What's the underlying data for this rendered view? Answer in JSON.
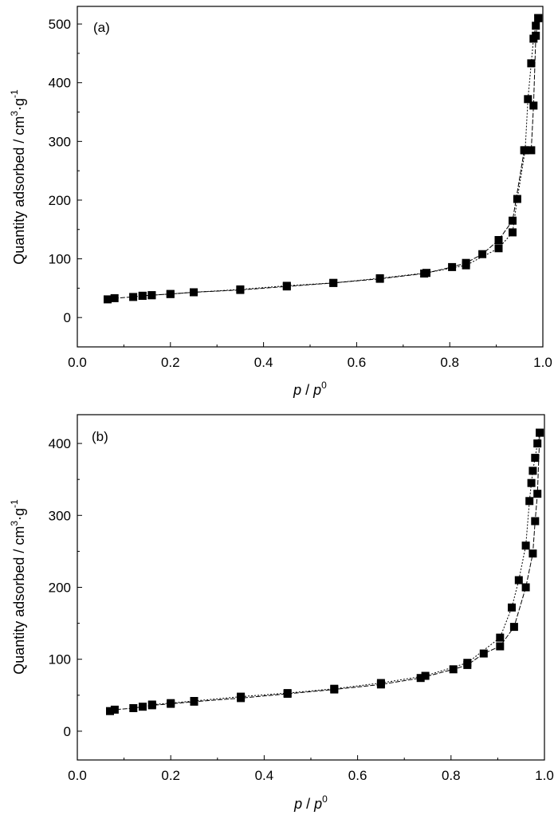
{
  "chart_data": [
    {
      "type": "scatter",
      "panel": "(a)",
      "xlabel": "p / p0",
      "ylabel": "Quantity adsorbed / cm3·g-1",
      "xlim": [
        0.0,
        1.0
      ],
      "ylim": [
        -50,
        530
      ],
      "xticks": [
        "0.0",
        "0.2",
        "0.4",
        "0.6",
        "0.8",
        "1.0"
      ],
      "yticks": [
        "0",
        "100",
        "200",
        "300",
        "400",
        "500"
      ],
      "grid": false,
      "series": [
        {
          "x": [
            0.065,
            0.08,
            0.12,
            0.14,
            0.16,
            0.2,
            0.25,
            0.35,
            0.45,
            0.55,
            0.65,
            0.745,
            0.805,
            0.835,
            0.87,
            0.905,
            0.935,
            0.96,
            0.975,
            0.98,
            0.985,
            0.99
          ],
          "y": [
            31,
            33,
            35,
            37,
            38,
            40,
            43,
            47,
            53,
            59,
            66,
            75,
            86,
            93,
            108,
            132,
            165,
            285,
            285,
            361,
            480,
            510
          ]
        },
        {
          "x": [
            0.99,
            0.985,
            0.98,
            0.975,
            0.968,
            0.962,
            0.945,
            0.935,
            0.905,
            0.835,
            0.75,
            0.65,
            0.55,
            0.45,
            0.35,
            0.25,
            0.2,
            0.16,
            0.14
          ],
          "y": [
            510,
            497,
            475,
            433,
            372,
            285,
            202,
            145,
            118,
            89,
            76,
            67,
            59,
            54,
            48,
            43,
            40,
            38,
            37
          ]
        }
      ]
    },
    {
      "type": "scatter",
      "panel": "(b)",
      "xlabel": "p / p0",
      "ylabel": "Quantity adsorbed / cm3·g-1",
      "xlim": [
        0.0,
        1.0
      ],
      "ylim": [
        -40,
        440
      ],
      "xticks": [
        "0.0",
        "0.2",
        "0.4",
        "0.6",
        "0.8",
        "1.0"
      ],
      "yticks": [
        "0",
        "100",
        "200",
        "300",
        "400"
      ],
      "grid": false,
      "series": [
        {
          "x": [
            0.07,
            0.08,
            0.12,
            0.14,
            0.16,
            0.2,
            0.25,
            0.35,
            0.45,
            0.55,
            0.65,
            0.735,
            0.805,
            0.835,
            0.87,
            0.905,
            0.935,
            0.96,
            0.975,
            0.98,
            0.985,
            0.99
          ],
          "y": [
            28,
            30,
            32,
            34,
            36,
            38,
            41,
            46,
            52,
            58,
            65,
            74,
            86,
            92,
            108,
            118,
            145,
            200,
            247,
            292,
            330,
            415
          ]
        },
        {
          "x": [
            0.99,
            0.985,
            0.98,
            0.975,
            0.972,
            0.968,
            0.96,
            0.945,
            0.93,
            0.905,
            0.835,
            0.745,
            0.65,
            0.55,
            0.45,
            0.35,
            0.25,
            0.2,
            0.16
          ],
          "y": [
            415,
            400,
            380,
            362,
            345,
            320,
            258,
            210,
            172,
            130,
            95,
            77,
            67,
            59,
            53,
            48,
            42,
            39,
            37
          ]
        }
      ]
    }
  ]
}
